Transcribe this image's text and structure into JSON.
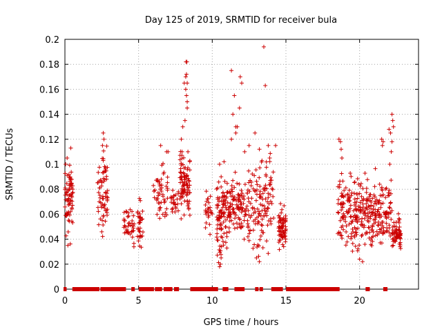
{
  "chart_data": {
    "type": "scatter",
    "title": "Day 125 of 2019, SRMTID for receiver bula",
    "xlabel": "GPS time / hours",
    "ylabel": "SRMTID / TECUs",
    "xlim": [
      0,
      24
    ],
    "ylim": [
      0,
      0.2
    ],
    "x_ticks": [
      0,
      5,
      10,
      15,
      20
    ],
    "x_tick_labels": [
      "0",
      "5",
      "10",
      "15",
      "20"
    ],
    "y_ticks": [
      0,
      0.02,
      0.04,
      0.06,
      0.08,
      0.1,
      0.12,
      0.14,
      0.16,
      0.18,
      0.2
    ],
    "y_tick_labels": [
      "0",
      "0.02",
      "0.04",
      "0.06",
      "0.08",
      "0.1",
      "0.12",
      "0.14",
      "0.16",
      "0.18",
      "0.2"
    ],
    "grid": true,
    "legend": "none",
    "series": [
      {
        "name": "SRMTID",
        "color": "#cc0000",
        "marker": "plus",
        "clusters": [
          {
            "x": [
              0.0,
              0.55
            ],
            "y": [
              0.03,
              0.113
            ],
            "n": 70
          },
          {
            "x": [
              2.2,
              2.9
            ],
            "y": [
              0.035,
              0.125
            ],
            "n": 70
          },
          {
            "x": [
              4.0,
              4.7
            ],
            "y": [
              0.03,
              0.07
            ],
            "n": 40
          },
          {
            "x": [
              4.9,
              5.3
            ],
            "y": [
              0.025,
              0.08
            ],
            "n": 30
          },
          {
            "x": [
              6.0,
              7.0
            ],
            "y": [
              0.04,
              0.11
            ],
            "n": 50
          },
          {
            "x": [
              7.2,
              7.7
            ],
            "y": [
              0.05,
              0.09
            ],
            "n": 25
          },
          {
            "x": [
              7.8,
              8.5
            ],
            "y": [
              0.05,
              0.12
            ],
            "n": 90
          },
          {
            "x": [
              9.5,
              10.0
            ],
            "y": [
              0.04,
              0.09
            ],
            "n": 25
          },
          {
            "x": [
              10.3,
              11.0
            ],
            "y": [
              0.015,
              0.1
            ],
            "n": 90
          },
          {
            "x": [
              11.0,
              12.5
            ],
            "y": [
              0.03,
              0.1
            ],
            "n": 120
          },
          {
            "x": [
              12.5,
              14.2
            ],
            "y": [
              0.02,
              0.12
            ],
            "n": 120
          },
          {
            "x": [
              14.5,
              15.0
            ],
            "y": [
              0.025,
              0.075
            ],
            "n": 70
          },
          {
            "x": [
              18.5,
              19.5
            ],
            "y": [
              0.025,
              0.1
            ],
            "n": 80
          },
          {
            "x": [
              19.5,
              21.0
            ],
            "y": [
              0.02,
              0.1
            ],
            "n": 140
          },
          {
            "x": [
              21.0,
              22.2
            ],
            "y": [
              0.03,
              0.1
            ],
            "n": 100
          },
          {
            "x": [
              22.2,
              22.8
            ],
            "y": [
              0.025,
              0.065
            ],
            "n": 60
          }
        ],
        "points": [
          [
            0.05,
            0.1
          ],
          [
            0.15,
            0.105
          ],
          [
            0.4,
            0.113
          ],
          [
            0.35,
            0.09
          ],
          [
            0.2,
            0.035
          ],
          [
            2.6,
            0.125
          ],
          [
            2.65,
            0.12
          ],
          [
            2.55,
            0.115
          ],
          [
            2.6,
            0.103
          ],
          [
            6.5,
            0.115
          ],
          [
            6.9,
            0.11
          ],
          [
            7.0,
            0.11
          ],
          [
            7.9,
            0.12
          ],
          [
            8.0,
            0.13
          ],
          [
            8.2,
            0.16
          ],
          [
            8.1,
            0.165
          ],
          [
            8.2,
            0.17
          ],
          [
            8.25,
            0.172
          ],
          [
            8.3,
            0.165
          ],
          [
            8.25,
            0.155
          ],
          [
            8.3,
            0.15
          ],
          [
            8.3,
            0.145
          ],
          [
            8.15,
            0.135
          ],
          [
            8.28,
            0.182
          ],
          [
            8.22,
            0.182
          ],
          [
            7.95,
            0.11
          ],
          [
            8.35,
            0.11
          ],
          [
            11.3,
            0.175
          ],
          [
            11.5,
            0.155
          ],
          [
            11.6,
            0.13
          ],
          [
            11.4,
            0.14
          ],
          [
            11.3,
            0.12
          ],
          [
            11.9,
            0.17
          ],
          [
            12.0,
            0.165
          ],
          [
            11.85,
            0.145
          ],
          [
            11.7,
            0.13
          ],
          [
            11.6,
            0.125
          ],
          [
            13.5,
            0.194
          ],
          [
            13.6,
            0.163
          ],
          [
            12.9,
            0.125
          ],
          [
            14.3,
            0.115
          ],
          [
            12.2,
            0.11
          ],
          [
            12.5,
            0.115
          ],
          [
            13.2,
            0.112
          ],
          [
            13.8,
            0.115
          ],
          [
            13.9,
            0.105
          ],
          [
            10.8,
            0.102
          ],
          [
            10.5,
            0.1
          ],
          [
            10.6,
            0.025
          ],
          [
            10.55,
            0.02
          ],
          [
            10.5,
            0.018
          ],
          [
            13.0,
            0.025
          ],
          [
            13.2,
            0.022
          ],
          [
            18.6,
            0.12
          ],
          [
            18.7,
            0.118
          ],
          [
            18.75,
            0.112
          ],
          [
            18.8,
            0.105
          ],
          [
            21.5,
            0.12
          ],
          [
            21.6,
            0.118
          ],
          [
            21.55,
            0.115
          ],
          [
            22.2,
            0.14
          ],
          [
            22.25,
            0.135
          ],
          [
            22.3,
            0.13
          ],
          [
            22.0,
            0.128
          ],
          [
            22.1,
            0.125
          ],
          [
            22.2,
            0.118
          ],
          [
            22.15,
            0.11
          ],
          [
            22.05,
            0.1
          ],
          [
            20.2,
            0.022
          ],
          [
            20.0,
            0.024
          ]
        ],
        "zero_segments": [
          [
            0.0,
            0.02
          ],
          [
            0.6,
            2.1
          ],
          [
            2.2,
            2.25
          ],
          [
            2.5,
            2.9
          ],
          [
            2.95,
            4.05
          ],
          [
            4.6,
            4.65
          ],
          [
            5.1,
            5.15
          ],
          [
            5.3,
            5.55
          ],
          [
            5.6,
            5.95
          ],
          [
            6.2,
            6.5
          ],
          [
            6.8,
            7.2
          ],
          [
            7.5,
            7.65
          ],
          [
            8.6,
            10.3
          ],
          [
            10.8,
            11.0
          ],
          [
            11.6,
            12.1
          ],
          [
            13.0,
            13.05
          ],
          [
            13.3,
            13.35
          ],
          [
            14.1,
            14.15
          ],
          [
            14.2,
            14.5
          ],
          [
            14.6,
            14.7
          ],
          [
            15.1,
            18.55
          ],
          [
            20.5,
            20.6
          ],
          [
            21.7,
            21.8
          ]
        ]
      }
    ]
  }
}
